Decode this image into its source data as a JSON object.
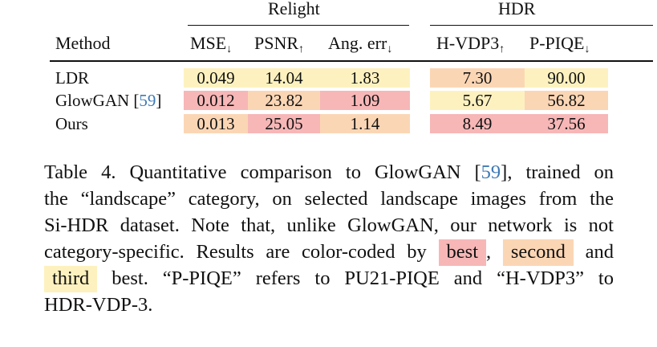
{
  "table": {
    "group_headers": {
      "relight": "Relight",
      "hdr": "HDR"
    },
    "columns": [
      {
        "label": "Method",
        "arrow": ""
      },
      {
        "label": "MSE",
        "arrow": "↓"
      },
      {
        "label": "PSNR",
        "arrow": "↑"
      },
      {
        "label": "Ang. err",
        "arrow": "↓"
      },
      {
        "label": "H-VDP3",
        "arrow": "↑"
      },
      {
        "label": "P-PIQE",
        "arrow": "↓"
      }
    ],
    "rows": [
      {
        "method": "LDR",
        "cite": "",
        "mse": "0.049",
        "psnr": "14.04",
        "ang": "1.83",
        "hvdp": "7.30",
        "piqe": "90.00"
      },
      {
        "method": "GlowGAN [",
        "cite": "59",
        "method_end": "]",
        "mse": "0.012",
        "psnr": "23.82",
        "ang": "1.09",
        "hvdp": "5.67",
        "piqe": "56.82"
      },
      {
        "method": "Ours",
        "cite": "",
        "mse": "0.013",
        "psnr": "25.05",
        "ang": "1.14",
        "hvdp": "8.49",
        "piqe": "37.56"
      }
    ],
    "colors": {
      "best": "#f7b7b7",
      "second": "#fbd6b5",
      "third": "#fdf2bf"
    }
  },
  "caption": {
    "l1a": "Table 4.  Quantitative comparison to GlowGAN [",
    "l1cite": "59",
    "l1b": "], trained on",
    "l2": "the “landscape” category, on selected landscape images from the",
    "l3": "Si-HDR dataset. Note that, unlike GlowGAN, our network is not",
    "l4a": "category-specific. Results are color-coded by",
    "best": "best",
    "comma": ",",
    "second": "second",
    "and": "and",
    "third": "third",
    "l5b": "best.  “P-PIQE” refers to PU21-PIQE and “H-VDP3” to",
    "l6": "HDR-VDP-3."
  }
}
